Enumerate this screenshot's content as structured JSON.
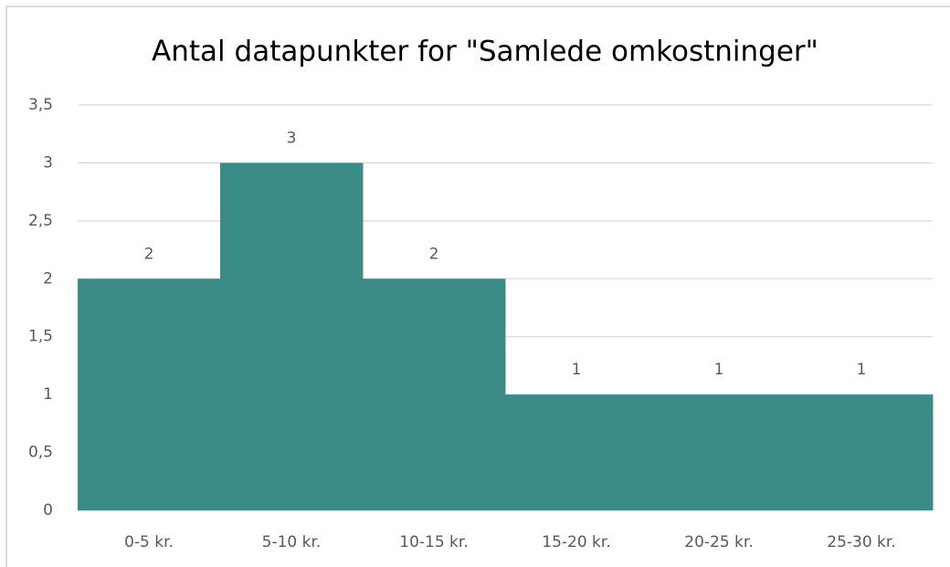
{
  "chart_data": {
    "type": "bar",
    "title": "Antal datapunkter for \"Samlede omkostninger\"",
    "categories": [
      "0-5 kr.",
      "5-10 kr.",
      "10-15 kr.",
      "15-20 kr.",
      "20-25 kr.",
      "25-30 kr."
    ],
    "values": [
      2,
      3,
      2,
      1,
      1,
      1
    ],
    "color": "#3b8c86",
    "ylim": [
      0,
      3.5
    ],
    "yticks": [
      0,
      {
        "value": 0.5,
        "label": "0,5"
      },
      1,
      {
        "value": 1.5,
        "label": "1,5"
      },
      2,
      {
        "value": 2.5,
        "label": "2,5"
      },
      3,
      {
        "value": 3.5,
        "label": "3,5"
      }
    ],
    "grid": true
  }
}
